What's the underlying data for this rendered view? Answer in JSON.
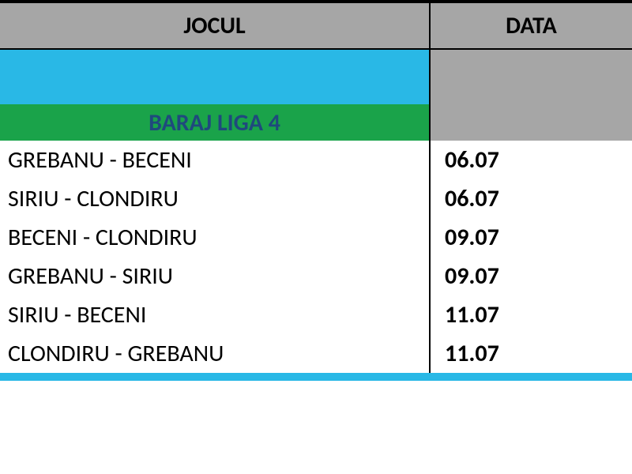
{
  "headers": {
    "jocul": "JOCUL",
    "data": "DATA"
  },
  "section_title": "BARAJ LIGA 4",
  "matches": [
    {
      "fixture": "GREBANU - BECENI",
      "date": "06.07"
    },
    {
      "fixture": "SIRIU - CLONDIRU",
      "date": "06.07"
    },
    {
      "fixture": "BECENI - CLONDIRU",
      "date": "09.07"
    },
    {
      "fixture": "GREBANU - SIRIU",
      "date": "09.07"
    },
    {
      "fixture": "SIRIU - BECENI",
      "date": "11.07"
    },
    {
      "fixture": "CLONDIRU - GREBANU",
      "date": "11.07"
    }
  ],
  "colors": {
    "header_bg": "#a6a6a6",
    "spacer_blue": "#29b8e6",
    "section_green": "#1aa34a",
    "section_text": "#1f497d",
    "border": "#000000",
    "row_bg": "#ffffff"
  },
  "fonts": {
    "header_size_pt": 22,
    "section_size_pt": 22,
    "cell_size_pt": 22,
    "family": "Calibri"
  },
  "column_widths_pct": {
    "jocul": 68,
    "data": 32
  }
}
